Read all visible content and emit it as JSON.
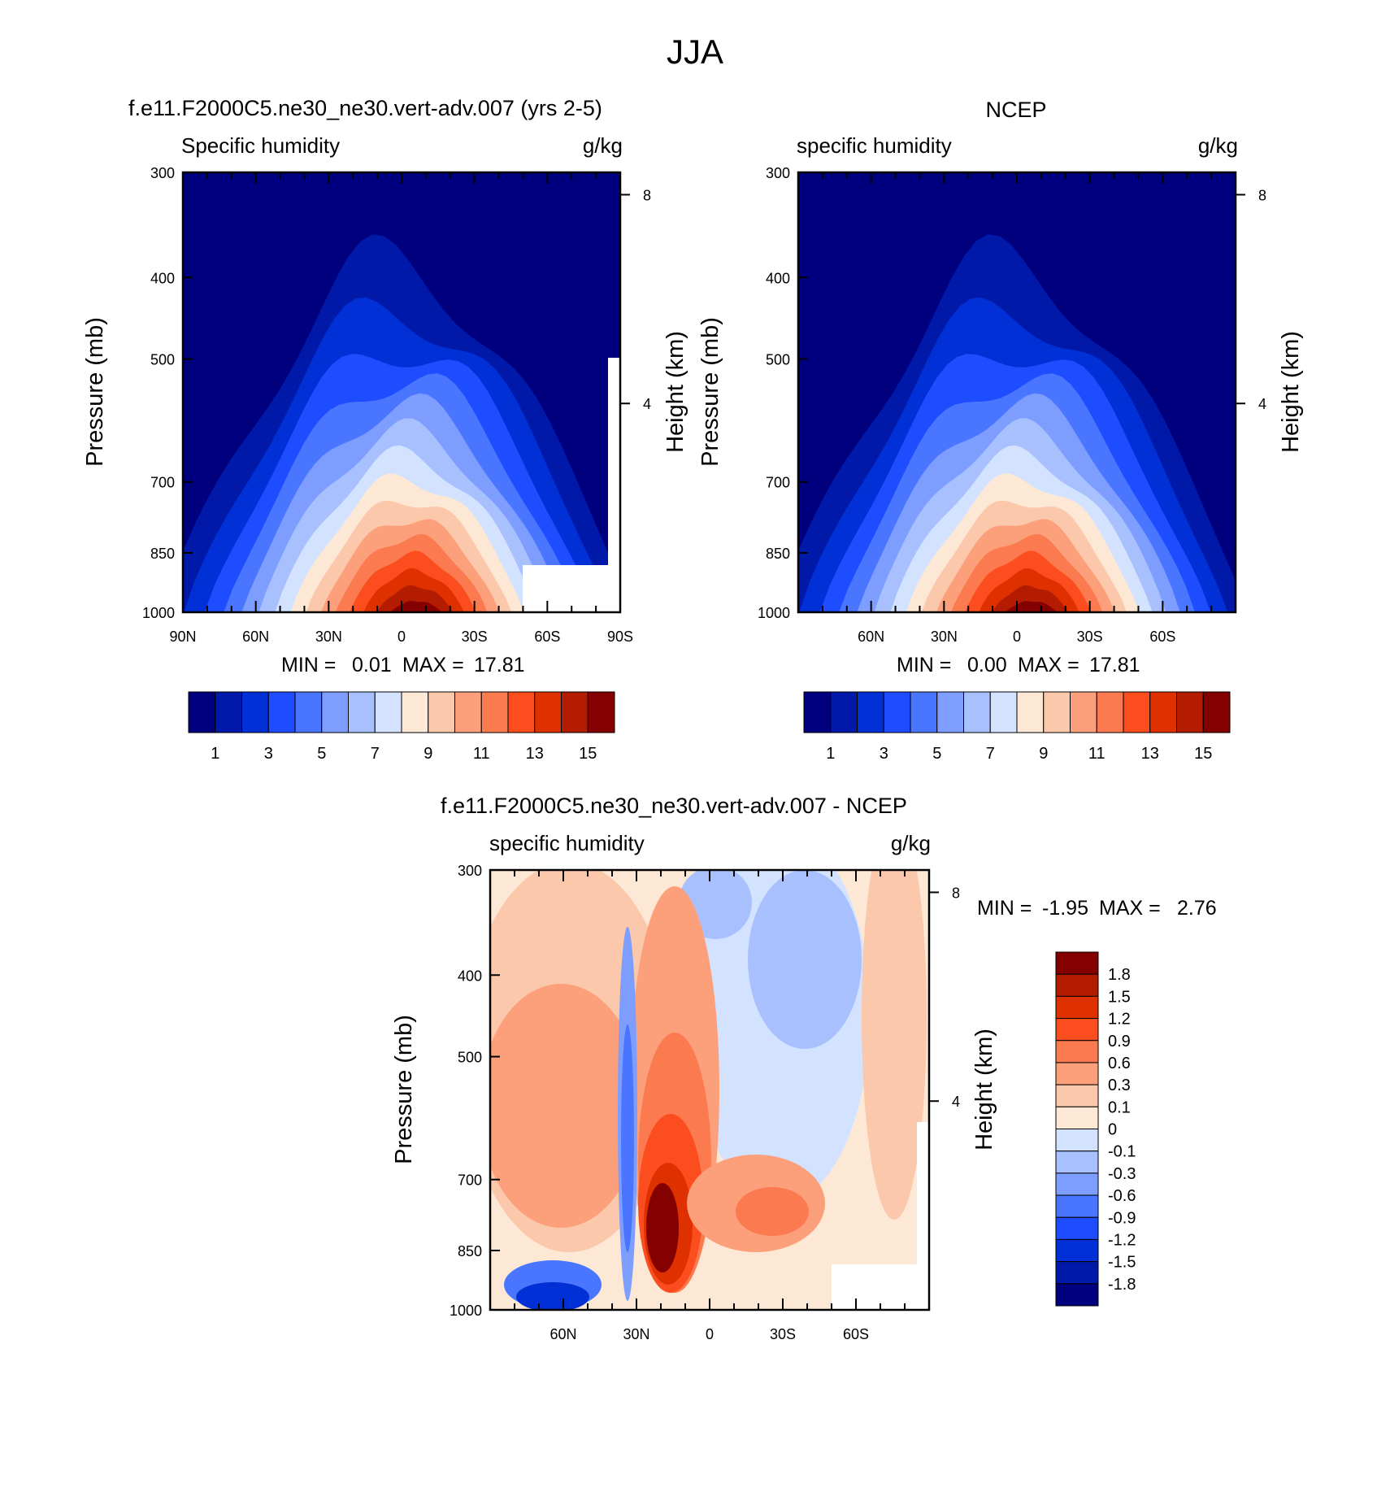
{
  "page": {
    "title": "JJA"
  },
  "colors": {
    "main_scale": [
      "#00007f",
      "#0019a8",
      "#0030d6",
      "#1e4dff",
      "#4a76ff",
      "#7d9dff",
      "#a9c0ff",
      "#d3e3ff",
      "#fde8d6",
      "#fcc8ac",
      "#fca07c",
      "#fc7a50",
      "#fc4d1e",
      "#df3000",
      "#b31c00",
      "#850000"
    ],
    "diff_scale": [
      "#00007f",
      "#0019a8",
      "#0030d6",
      "#1e4dff",
      "#4a76ff",
      "#7d9dff",
      "#a9c0ff",
      "#d3e3ff",
      "#fde8d6",
      "#fcc8ac",
      "#fca07c",
      "#fc7a50",
      "#fc4d1e",
      "#df3000",
      "#b31c00",
      "#850000"
    ]
  },
  "chart_data": [
    {
      "id": "model",
      "type": "heatmap",
      "title": "f.e11.F2000C5.ne30_ne30.vert-adv.007 (yrs 2-5)",
      "left_subtitle": "Specific humidity",
      "right_subtitle": "g/kg",
      "ylabel": "Pressure (mb)",
      "y2label": "Height (km)",
      "y_ticks": [
        "300",
        "400",
        "500",
        "700",
        "850",
        "1000"
      ],
      "y2_ticks": [
        "8",
        "4"
      ],
      "x_ticks": [
        "90N",
        "60N",
        "30N",
        "0",
        "30S",
        "60S",
        "90S"
      ],
      "min_label": "MIN =",
      "min_value": "0.01",
      "max_label": "MAX =",
      "max_value": "17.81",
      "colorbar_labels": [
        "1",
        "3",
        "5",
        "7",
        "9",
        "11",
        "13",
        "15"
      ],
      "peak_lat": -7,
      "peak_value": 17.81
    },
    {
      "id": "obs",
      "type": "heatmap",
      "title": "NCEP",
      "left_subtitle": "specific humidity",
      "right_subtitle": "g/kg",
      "ylabel": "Pressure (mb)",
      "y2label": "Height (km)",
      "y_ticks": [
        "300",
        "400",
        "500",
        "700",
        "850",
        "1000"
      ],
      "y2_ticks": [
        "8",
        "4"
      ],
      "x_ticks": [
        "60N",
        "30N",
        "0",
        "30S",
        "60S"
      ],
      "min_label": "MIN =",
      "min_value": "0.00",
      "max_label": "MAX =",
      "max_value": "17.81",
      "colorbar_labels": [
        "1",
        "3",
        "5",
        "7",
        "9",
        "11",
        "13",
        "15"
      ],
      "peak_lat": -7,
      "peak_value": 17.81
    },
    {
      "id": "diff",
      "type": "heatmap",
      "title": "f.e11.F2000C5.ne30_ne30.vert-adv.007 - NCEP",
      "left_subtitle": "specific humidity",
      "right_subtitle": "g/kg",
      "ylabel": "Pressure (mb)",
      "y2label": "Height (km)",
      "y_ticks": [
        "300",
        "400",
        "500",
        "700",
        "850",
        "1000"
      ],
      "y2_ticks": [
        "8",
        "4"
      ],
      "x_ticks": [
        "60N",
        "30N",
        "0",
        "30S",
        "60S"
      ],
      "min_label": "MIN =",
      "min_value": "-1.95",
      "max_label": "MAX =",
      "max_value": "2.76",
      "colorbar_labels": [
        "1.8",
        "1.5",
        "1.2",
        "0.9",
        "0.6",
        "0.3",
        "0.1",
        "0",
        "-0.1",
        "-0.3",
        "-0.6",
        "-0.9",
        "-1.2",
        "-1.5",
        "-1.8"
      ]
    }
  ]
}
